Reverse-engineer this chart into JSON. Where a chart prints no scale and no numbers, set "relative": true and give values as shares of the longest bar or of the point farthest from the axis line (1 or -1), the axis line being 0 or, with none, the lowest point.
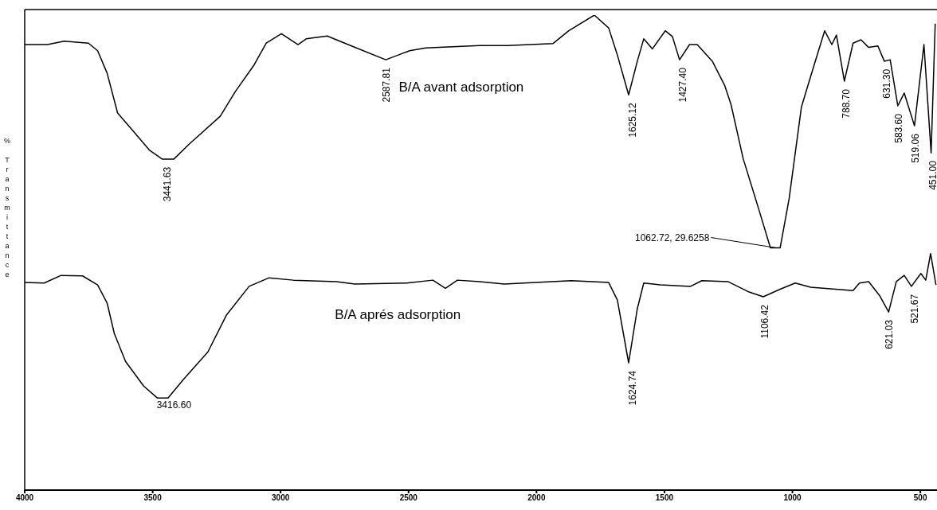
{
  "chart_data": {
    "type": "line",
    "relative": true,
    "ylabel": "% Transmittance",
    "xlim": [
      4000,
      435
    ],
    "xticks": [
      4000,
      3500,
      3000,
      2500,
      2000,
      1500,
      1000,
      500
    ],
    "series": [
      {
        "name": "B/A avant adsorption",
        "color": "#000000",
        "x": [
          4000,
          3911,
          3846,
          3751,
          3715,
          3678,
          3637,
          3584,
          3513,
          3463,
          3417,
          3356,
          3236,
          3177,
          3105,
          3056,
          2997,
          2932,
          2900,
          2818,
          2723,
          2589,
          2496,
          2433,
          2222,
          2113,
          1936,
          1874,
          1774,
          1718,
          1684,
          1640,
          1606,
          1581,
          1547,
          1497,
          1469,
          1441,
          1402,
          1372,
          1313,
          1264,
          1240,
          1192,
          1133,
          1086,
          1048,
          1013,
          965,
          918,
          874,
          846,
          828,
          797,
          763,
          732,
          702,
          666,
          641,
          618,
          588,
          563,
          523,
          486,
          458,
          442
        ],
        "values": [
          0.938,
          0.938,
          0.945,
          0.941,
          0.925,
          0.878,
          0.794,
          0.761,
          0.716,
          0.697,
          0.697,
          0.729,
          0.787,
          0.839,
          0.894,
          0.941,
          0.961,
          0.938,
          0.95,
          0.956,
          0.935,
          0.906,
          0.925,
          0.931,
          0.936,
          0.936,
          0.94,
          0.967,
          1,
          0.973,
          0.916,
          0.832,
          0.903,
          0.95,
          0.929,
          0.967,
          0.955,
          0.906,
          0.938,
          0.938,
          0.903,
          0.851,
          0.812,
          0.697,
          0.594,
          0.51,
          0.51,
          0.613,
          0.806,
          0.89,
          0.967,
          0.938,
          0.958,
          0.861,
          0.941,
          0.948,
          0.932,
          0.935,
          0.903,
          0.906,
          0.809,
          0.836,
          0.767,
          0.938,
          0.71,
          0.982
        ]
      },
      {
        "name": "B/A aprés adsorption",
        "color": "#000000",
        "x": [
          4000,
          3924,
          3858,
          3774,
          3715,
          3678,
          3650,
          3606,
          3535,
          3482,
          3440,
          3380,
          3284,
          3211,
          3123,
          3045,
          2950,
          2782,
          2710,
          2507,
          2405,
          2356,
          2309,
          2222,
          2126,
          1864,
          1718,
          1684,
          1640,
          1606,
          1581,
          1516,
          1398,
          1354,
          1252,
          1169,
          1114,
          1048,
          989,
          929,
          763,
          738,
          702,
          660,
          624,
          594,
          563,
          535,
          498,
          479,
          460,
          439
        ],
        "values": [
          0.437,
          0.436,
          0.452,
          0.451,
          0.432,
          0.394,
          0.33,
          0.271,
          0.219,
          0.194,
          0.194,
          0.233,
          0.291,
          0.369,
          0.429,
          0.447,
          0.442,
          0.439,
          0.434,
          0.436,
          0.442,
          0.425,
          0.442,
          0.439,
          0.434,
          0.441,
          0.437,
          0.4,
          0.268,
          0.382,
          0.436,
          0.432,
          0.429,
          0.441,
          0.439,
          0.417,
          0.407,
          0.423,
          0.436,
          0.427,
          0.42,
          0.436,
          0.439,
          0.41,
          0.375,
          0.439,
          0.452,
          0.429,
          0.456,
          0.442,
          0.498,
          0.432
        ]
      }
    ],
    "annotations": [
      {
        "text": "3441.63",
        "x": 3441.63,
        "y": 0.697
      },
      {
        "text": "2587.81",
        "x": 2587.81,
        "y": 0.906
      },
      {
        "text": "1625.12",
        "x": 1625.12,
        "y": 0.832
      },
      {
        "text": "1427.40",
        "x": 1427.4,
        "y": 0.906
      },
      {
        "text": "788.70",
        "x": 788.7,
        "y": 0.861
      },
      {
        "text": "631.30",
        "x": 631.3,
        "y": 0.903
      },
      {
        "text": "583.60",
        "x": 583.6,
        "y": 0.809
      },
      {
        "text": "519.06",
        "x": 519.06,
        "y": 0.767
      },
      {
        "text": "451.00",
        "x": 451,
        "y": 0.71
      },
      {
        "text": "1062.72, 29.6258",
        "x": 1062.72,
        "y": 0.51
      },
      {
        "text": "3416.60",
        "x": 3416.6,
        "y": 0.209
      },
      {
        "text": "1624.74",
        "x": 1624.74,
        "y": 0.268
      },
      {
        "text": "1106.42",
        "x": 1106.42,
        "y": 0.407
      },
      {
        "text": "621.03",
        "x": 621.03,
        "y": 0.375
      },
      {
        "text": "521.67",
        "x": 521.67,
        "y": 0.429
      }
    ]
  }
}
